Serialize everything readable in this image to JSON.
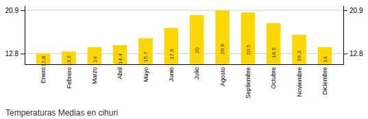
{
  "chart_data": {
    "type": "bar",
    "title": "Temperaturas Medias en cihuri",
    "categories": [
      "Enero",
      "Febrero",
      "Marzo",
      "Abril",
      "Mayo",
      "Junio",
      "Julio",
      "Agosto",
      "Septiembre",
      "Octubre",
      "Noviembre",
      "Diciembre"
    ],
    "values": [
      12.8,
      13.2,
      14.0,
      14.4,
      15.7,
      17.6,
      20.0,
      20.9,
      20.5,
      18.5,
      16.3,
      14.0
    ],
    "color": "#FFD700",
    "ylim": [
      10.8,
      21.8
    ],
    "yticks": [
      12.8,
      20.9
    ],
    "y2lim": [
      10.8,
      21.8
    ],
    "y2ticks": [
      12.8,
      20.9
    ],
    "grid": true,
    "data_labels": true
  }
}
